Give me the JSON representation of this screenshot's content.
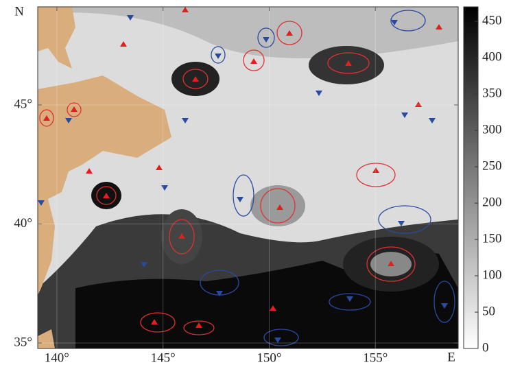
{
  "map": {
    "lat_label": "N",
    "lon_label": "E",
    "lonlim": [
      139.1,
      158.9
    ],
    "latlim": [
      34.77,
      49.12
    ],
    "lon_ticks": [
      {
        "value": 140,
        "label": "140°"
      },
      {
        "value": 145,
        "label": "145°"
      },
      {
        "value": 150,
        "label": "150°"
      },
      {
        "value": 155,
        "label": "155°"
      }
    ],
    "lat_ticks": [
      {
        "value": 35,
        "label": "35°"
      },
      {
        "value": 40,
        "label": "40°"
      },
      {
        "value": 45,
        "label": "45°"
      }
    ],
    "colorbar": {
      "lim": [
        0,
        470
      ],
      "ticks": [
        0,
        50,
        100,
        150,
        200,
        250,
        300,
        350,
        400,
        450
      ]
    }
  }
}
